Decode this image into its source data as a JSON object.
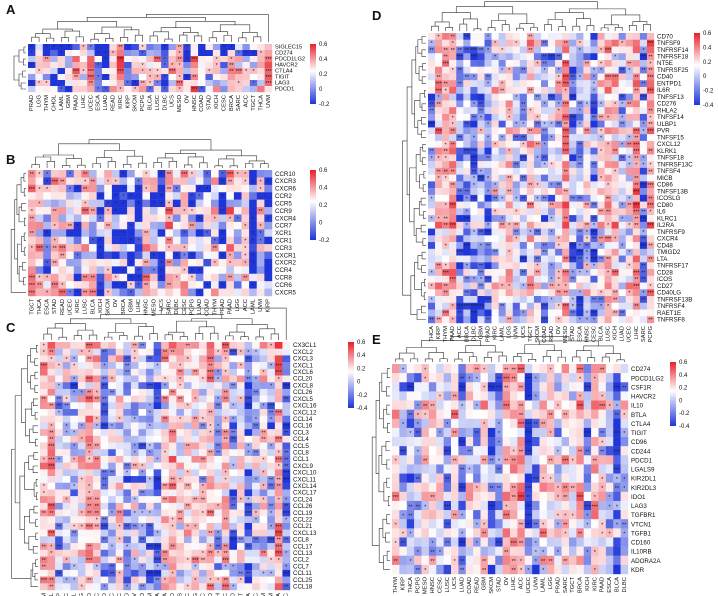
{
  "figure": {
    "description_panels": [
      "A",
      "B",
      "C",
      "D",
      "E"
    ]
  },
  "chart_data": [
    {
      "panel": "A",
      "type": "heatmap",
      "rows": [
        "SIGLEC15",
        "CD274",
        "PDCD1LG2",
        "HAVCR2",
        "CTLA4",
        "TIGIT",
        "LAG3",
        "PDCD1"
      ],
      "columns": [
        "PRAD",
        "LGG",
        "THYM",
        "CHOL",
        "LAML",
        "GBM",
        "PAAD",
        "LIHC",
        "UCEC",
        "ESCA",
        "LUAD",
        "READ",
        "KIRC",
        "KIRP",
        "SKCM",
        "PCPG",
        "BLCA",
        "LUSC",
        "DLBC",
        "UCS",
        "MESO",
        "OV",
        "HNSC",
        "COAD",
        "STAD",
        "KICH",
        "CESC",
        "BRCA",
        "SARC",
        "ACC",
        "TGCT",
        "THCA",
        "UVM"
      ],
      "scale": {
        "min": -0.2,
        "max": 0.6,
        "ticks": [
          "0.6",
          "0.4",
          "0.2",
          "0",
          "-0.2"
        ]
      }
    },
    {
      "panel": "B",
      "type": "heatmap",
      "rows": [
        "CCR10",
        "CXCR3",
        "CXCR6",
        "CCR2",
        "CCR5",
        "CCR9",
        "CXCR4",
        "CCR7",
        "XCR1",
        "CCR1",
        "CCR3",
        "CXCR1",
        "CXCR2",
        "CCR4",
        "CCR8",
        "CCR6",
        "CXCR5"
      ],
      "columns": [
        "TGCT",
        "THCA",
        "ESCA",
        "STAD",
        "READ",
        "UCEC",
        "KIRC",
        "LUSC",
        "BLCA",
        "KICH",
        "SKCM",
        "OV",
        "BRCA",
        "GBM",
        "LIHC",
        "HNSC",
        "MESO",
        "UCS",
        "SARC",
        "DLBC",
        "CESC",
        "PCPG",
        "LUAD",
        "COAD",
        "THYM",
        "PRAD",
        "PAAD",
        "LGG",
        "ACC",
        "LAML",
        "UVM",
        "KIRP"
      ],
      "scale": {
        "min": -0.2,
        "max": 0.6,
        "ticks": [
          "0.6",
          "0.4",
          "0.2",
          "0",
          "-0.2"
        ]
      }
    },
    {
      "panel": "C",
      "type": "heatmap",
      "rows": [
        "CX3CL1",
        "CXCL2",
        "CXCL3",
        "CXCL1",
        "CXCL6",
        "CCL20",
        "CXCL8",
        "CCL26",
        "CXCL5",
        "CXCL16",
        "CXCL12",
        "CCL14",
        "CCL16",
        "CCL3",
        "CCL4",
        "CCL5",
        "CCL8",
        "CCL1",
        "CXCL9",
        "CXCL10",
        "CXCL11",
        "CXCL14",
        "CXCL17",
        "CCL24",
        "CCL26",
        "CCL19",
        "CCL22",
        "CCL21",
        "CXCL13",
        "CCL8",
        "CCL17",
        "CCL13",
        "CCL2",
        "CCL7",
        "CCL11",
        "CCL25",
        "CCL18"
      ],
      "columns": [
        "THYM",
        "LAML",
        "KIRP",
        "ACC",
        "CHOL",
        "LGG",
        "LUAD",
        "DLBC",
        "PAAD",
        "KIRC",
        "UCEC",
        "COAD",
        "OV",
        "MESO",
        "SKCM",
        "THCA",
        "BLCA",
        "STAD",
        "UCS",
        "CESC",
        "PCPG",
        "SARC",
        "PRAD",
        "KICH",
        "LUSC",
        "READ",
        "TGCT",
        "ESCA",
        "HNSC",
        "GBM",
        "UVM",
        "BRCA",
        "LIHC"
      ],
      "scale": {
        "min": -0.4,
        "max": 0.6,
        "ticks": [
          "0.6",
          "0.4",
          "0.2",
          "0",
          "-0.2",
          "-0.4"
        ]
      }
    },
    {
      "panel": "D",
      "type": "heatmap",
      "rows": [
        "CD70",
        "TNFSF9",
        "TNFRSF14",
        "TNFRSF18",
        "NT5E",
        "TNFRSF25",
        "CD40",
        "ENTPD1",
        "IL6R",
        "TNFSF13",
        "CD276",
        "RHLA2",
        "TNFSF14",
        "ULBP1",
        "PVR",
        "TNFSF15",
        "CXCL12",
        "KLRK1",
        "TNFSF18",
        "TNFRSF13C",
        "TNFSF4",
        "MICB",
        "CD86",
        "TNFSF13B",
        "ICOSLG",
        "CD80",
        "IL6",
        "KLRC1",
        "IL2RA",
        "TNFRSF9",
        "CXCR4",
        "CD48",
        "TMIGD2",
        "LTA",
        "TNFRSF17",
        "CD28",
        "ICOS",
        "CD27",
        "CD40LG",
        "TNFRSF13B",
        "TNFRSF4",
        "RAET1E",
        "TNFRSF8"
      ],
      "columns": [
        "THCA",
        "KIRP",
        "THYM",
        "PAAD",
        "ACC",
        "BRCA",
        "DLBC",
        "GBM",
        "PRAD",
        "KIRC",
        "LAML",
        "LGG",
        "UVM",
        "UCS",
        "TGCT",
        "SKCM",
        "COAD",
        "READ",
        "OV",
        "MESO",
        "STAD",
        "ESCA",
        "HNSC",
        "CESC",
        "BLCA",
        "LUSC",
        "KICH",
        "LUAD",
        "UCEC",
        "LIHC",
        "SARC",
        "PCPG"
      ],
      "scale": {
        "min": -0.4,
        "max": 0.6,
        "ticks": [
          "0.6",
          "0.4",
          "0.2",
          "0",
          "-0.2",
          "-0.4"
        ]
      }
    },
    {
      "panel": "E",
      "type": "heatmap",
      "rows": [
        "CD274",
        "PDCD1LG2",
        "CSF1R",
        "HAVCR2",
        "IL10",
        "BTLA",
        "CTLA4",
        "TIGIT",
        "CD96",
        "CD244",
        "PDCD1",
        "LGALS9",
        "KIR2DL1",
        "KIR2DL3",
        "IDO1",
        "LAG3",
        "TGFBR1",
        "VTCN1",
        "TGFB1",
        "CD160",
        "IL10RB",
        "ADORA2A",
        "KDR"
      ],
      "columns": [
        "THYM",
        "KIRP",
        "THCA",
        "PCPG",
        "MESO",
        "HNSC",
        "CESC",
        "LUSC",
        "UCS",
        "LUAD",
        "COAD",
        "READ",
        "GBM",
        "SKCM",
        "STAD",
        "OV",
        "LIHC",
        "ACC",
        "UCEC",
        "UVM",
        "LAML",
        "LGG",
        "PRAD",
        "SARC",
        "TGCT",
        "BRCA",
        "KICH",
        "KIRC",
        "PAAD",
        "ESCA",
        "BLCA",
        "DLBC"
      ],
      "scale": {
        "min": -0.4,
        "max": 0.6,
        "ticks": [
          "0.6",
          "0.4",
          "0.2",
          "0",
          "-0.2",
          "-0.4"
        ]
      }
    }
  ]
}
